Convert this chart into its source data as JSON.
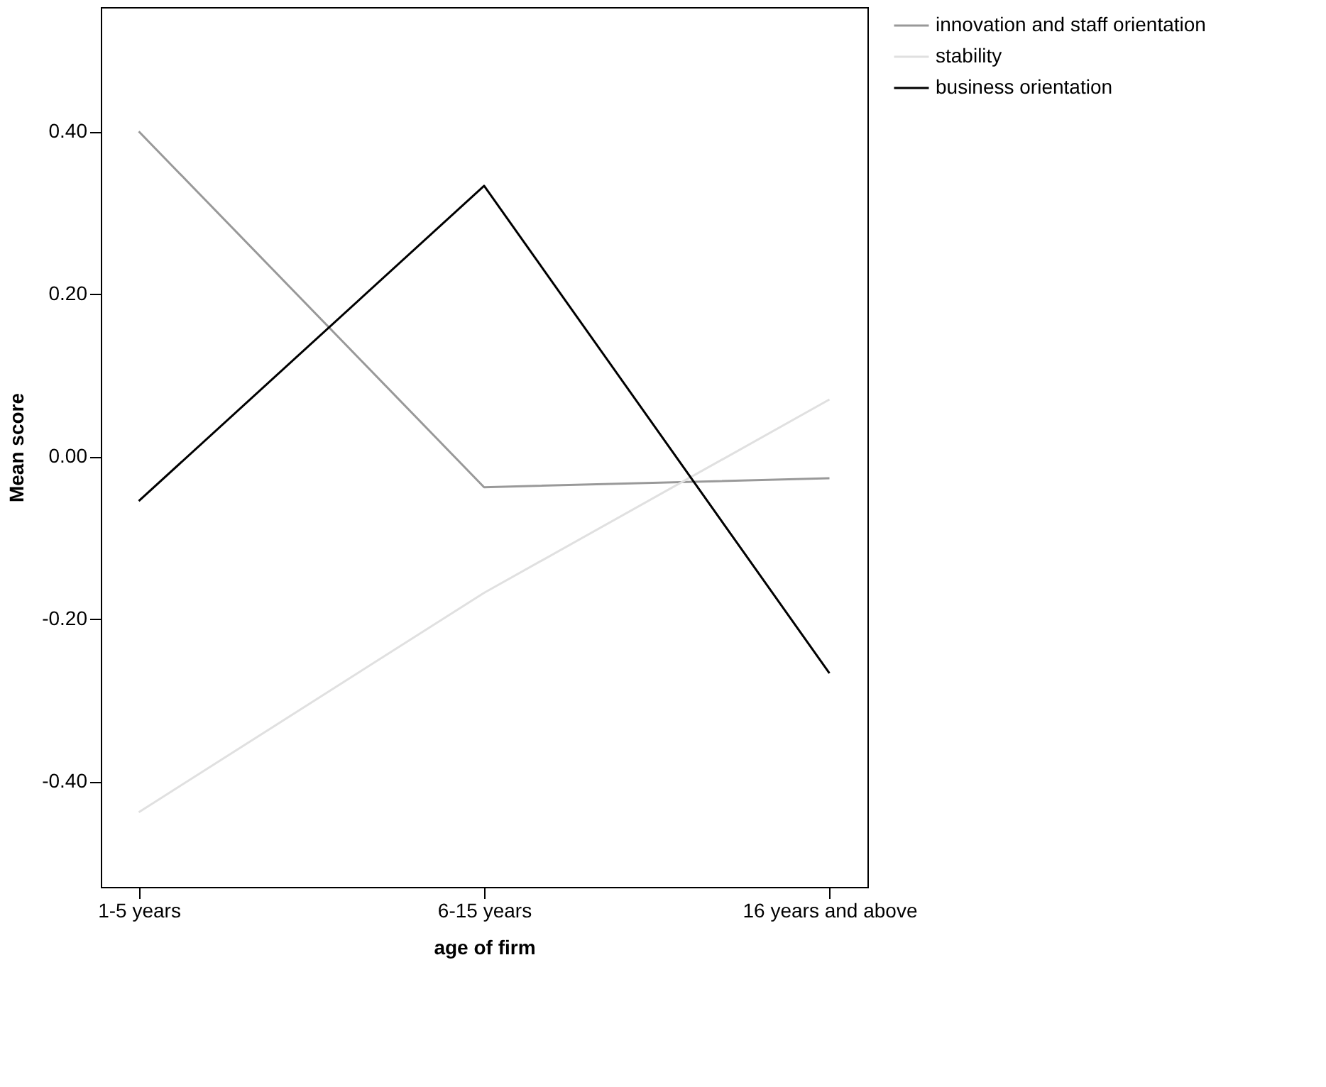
{
  "chart_data": {
    "type": "line",
    "xlabel": "age of firm",
    "ylabel": "Mean score",
    "categories": [
      "1-5 years",
      "6-15 years",
      "16 years and above"
    ],
    "series": [
      {
        "name": "innovation and staff orientation",
        "color": "#999999",
        "values": [
          0.4,
          -0.038,
          -0.027
        ]
      },
      {
        "name": "stability",
        "color": "#e0e0e0",
        "values": [
          -0.438,
          -0.168,
          0.07
        ]
      },
      {
        "name": "business orientation",
        "color": "#000000",
        "values": [
          -0.055,
          0.333,
          -0.267
        ]
      }
    ],
    "ylim": [
      -0.53,
      0.553
    ],
    "yticks": [
      {
        "value": -0.4,
        "label": "-0.40"
      },
      {
        "value": -0.2,
        "label": "-0.20"
      },
      {
        "value": 0,
        "label": "0.00"
      },
      {
        "value": 0.2,
        "label": "0.20"
      },
      {
        "value": 0.4,
        "label": "0.40"
      }
    ],
    "grid": false,
    "legend": "top right",
    "marker": "none",
    "line_style": "solid"
  }
}
